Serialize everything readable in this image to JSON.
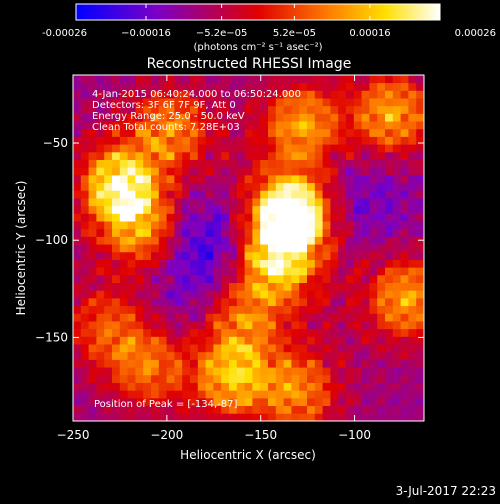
{
  "chart_data": {
    "type": "heatmap",
    "title": "Reconstructed RHESSI Image",
    "xlabel": "Heliocentric X (arcsec)",
    "ylabel": "Heliocentric Y (arcsec)",
    "xlim": [
      -250,
      -63
    ],
    "ylim": [
      -193,
      -15
    ],
    "x_ticks": [
      -250,
      -200,
      -150,
      -100
    ],
    "x_tick_labels": [
      "−250",
      "−200",
      "−150",
      "−100"
    ],
    "y_ticks": [
      -50,
      -100,
      -150
    ],
    "y_tick_labels": [
      "−50",
      "−100",
      "−150"
    ],
    "info_lines": [
      "4-Jan-2015 06:40:24.000 to 06:50:24.000",
      "Detectors: 3F 6F 7F 9F, Att 0",
      "Energy Range: 25.0 - 50.0 keV",
      "Clean     Total counts: 7.28E+03"
    ],
    "peak_label": "Position of Peak = [-134,-87]",
    "peak": [
      -134,
      -87
    ],
    "colorbar": {
      "range": [
        -0.00026,
        0.00026
      ],
      "tick_values": [
        -0.00026,
        -0.00016,
        -5.2e-05,
        5.2e-05,
        0.00016,
        0.00026
      ],
      "tick_labels": [
        "-0.00026",
        "−0.00016",
        "−5.2e−05",
        "5.2e−05",
        "0.00016",
        "0.00026"
      ],
      "units": "(photons cm⁻² s⁻¹ asec⁻²)",
      "colors": [
        "#0000ff",
        "#7a00c8",
        "#e00000",
        "#ff8000",
        "#ffe000",
        "#ffffff"
      ]
    },
    "sources": [
      {
        "x": -134,
        "y": -87,
        "amp": 1.0
      },
      {
        "x": -142,
        "y": -112,
        "amp": 0.55
      },
      {
        "x": -225,
        "y": -72,
        "amp": 0.75
      },
      {
        "x": -212,
        "y": -95,
        "amp": 0.45
      },
      {
        "x": -198,
        "y": -42,
        "amp": 0.45
      },
      {
        "x": -128,
        "y": -40,
        "amp": 0.5
      },
      {
        "x": -80,
        "y": -35,
        "amp": 0.55
      },
      {
        "x": -72,
        "y": -130,
        "amp": 0.55
      },
      {
        "x": -165,
        "y": -170,
        "amp": 0.55
      },
      {
        "x": -130,
        "y": -178,
        "amp": 0.45
      },
      {
        "x": -210,
        "y": -165,
        "amp": 0.4
      },
      {
        "x": -232,
        "y": -145,
        "amp": 0.35
      },
      {
        "x": -160,
        "y": -140,
        "amp": 0.35
      }
    ],
    "minima": [
      {
        "x": -180,
        "y": -100,
        "amp": 0.9
      },
      {
        "x": -95,
        "y": -80,
        "amp": 0.55
      },
      {
        "x": -190,
        "y": -130,
        "amp": 0.4
      }
    ],
    "grid": false
  },
  "footer": {
    "timestamp": "3-Jul-2017 22:23"
  }
}
